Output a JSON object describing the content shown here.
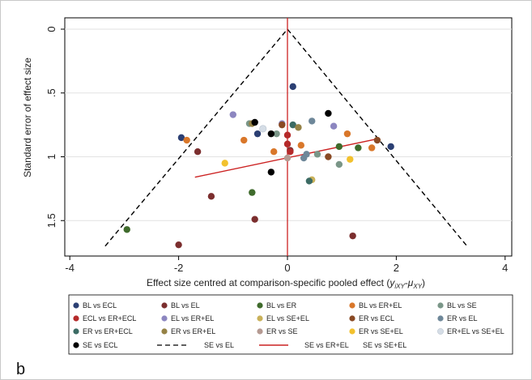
{
  "panel_label": "b",
  "chart_data": {
    "type": "scatter",
    "title": "",
    "xlabel_main": "Effect size centred at comparison-specific pooled effect (",
    "xlabel_formula": "y",
    "xlabel_sub1": "iXY",
    "xlabel_dash": "-",
    "xlabel_mu": "μ",
    "xlabel_sub2": "XY",
    "xlabel_close": ")",
    "ylabel": "Standard error of effect size",
    "xlim": [
      -4,
      4
    ],
    "ylim": [
      1.75,
      0
    ],
    "x_ticks": [
      -4,
      -2,
      0,
      2,
      4
    ],
    "x_tick_labels": [
      "-4",
      "-2",
      "0",
      "2",
      "4"
    ],
    "y_ticks": [
      0,
      0.5,
      1,
      1.5
    ],
    "y_tick_labels": [
      "0",
      ".5",
      "1",
      "1.5"
    ],
    "grid": true,
    "pseudo_ci": {
      "apex": [
        0,
        0
      ],
      "left_end": [
        -3.35,
        1.7
      ],
      "right_end": [
        3.3,
        1.7
      ],
      "style": "dashed",
      "color": "#000000"
    },
    "vertical_line": {
      "x": 0,
      "color": "#cc2222"
    },
    "regression_line": {
      "x": [
        -1.7,
        1.65
      ],
      "y": [
        1.16,
        0.86
      ],
      "color": "#cc2222"
    },
    "series": [
      {
        "name": "BL vs ECL",
        "color": "#2b3f73",
        "points": [
          [
            -1.95,
            0.85
          ],
          [
            0.1,
            0.45
          ],
          [
            -0.55,
            0.82
          ],
          [
            1.9,
            0.92
          ]
        ]
      },
      {
        "name": "BL vs EL",
        "color": "#7b2e2e",
        "points": [
          [
            -2.0,
            1.69
          ],
          [
            -0.6,
            1.49
          ],
          [
            -1.4,
            1.31
          ],
          [
            1.2,
            1.62
          ],
          [
            -1.65,
            0.96
          ],
          [
            0.05,
            0.95
          ]
        ]
      },
      {
        "name": "BL vs ER",
        "color": "#3f6b2c",
        "points": [
          [
            -2.95,
            1.57
          ],
          [
            -0.65,
            1.28
          ],
          [
            0.95,
            0.92
          ],
          [
            1.3,
            0.93
          ]
        ]
      },
      {
        "name": "BL vs ER+EL",
        "color": "#d9772a",
        "points": [
          [
            -1.85,
            0.87
          ],
          [
            -0.8,
            0.87
          ],
          [
            -0.25,
            0.96
          ],
          [
            0.25,
            0.91
          ],
          [
            1.55,
            0.93
          ],
          [
            1.1,
            0.82
          ]
        ]
      },
      {
        "name": "BL vs SE",
        "color": "#7a9688",
        "points": [
          [
            -0.7,
            0.74
          ],
          [
            -0.2,
            0.82
          ],
          [
            0.55,
            0.98
          ],
          [
            0.95,
            1.06
          ]
        ]
      },
      {
        "name": "ECL vs ER+ECL",
        "color": "#b52a2a",
        "points": [
          [
            0.0,
            0.83
          ],
          [
            0.0,
            0.9
          ],
          [
            0.05,
            0.96
          ]
        ]
      },
      {
        "name": "EL vs ER+EL",
        "color": "#8c86c0",
        "points": [
          [
            -1.0,
            0.67
          ],
          [
            0.85,
            0.76
          ],
          [
            -0.1,
            0.74
          ]
        ]
      },
      {
        "name": "EL vs SE+EL",
        "color": "#c9b15a",
        "points": [
          [
            0.45,
            1.18
          ]
        ]
      },
      {
        "name": "ER vs ECL",
        "color": "#8a4a24",
        "points": [
          [
            -0.1,
            0.75
          ],
          [
            1.65,
            0.87
          ],
          [
            0.75,
            1.0
          ]
        ]
      },
      {
        "name": "ER vs EL",
        "color": "#6e8799",
        "points": [
          [
            0.45,
            0.72
          ],
          [
            0.3,
            1.01
          ],
          [
            0.35,
            0.98
          ]
        ]
      },
      {
        "name": "ER vs ER+ECL",
        "color": "#3c6b64",
        "points": [
          [
            0.1,
            0.75
          ],
          [
            0.4,
            1.19
          ]
        ]
      },
      {
        "name": "ER vs ER+EL",
        "color": "#958246",
        "points": [
          [
            -0.65,
            0.74
          ],
          [
            0.2,
            0.77
          ]
        ]
      },
      {
        "name": "ER vs SE",
        "color": "#b59a92",
        "points": [
          [
            0.0,
            1.01
          ]
        ]
      },
      {
        "name": "ER vs SE+EL",
        "color": "#f2c12e",
        "points": [
          [
            -1.15,
            1.05
          ],
          [
            1.15,
            1.02
          ]
        ]
      },
      {
        "name": "ER+EL vs SE+EL",
        "color": "#d5dde6",
        "points": [
          [
            -0.45,
            0.78
          ]
        ]
      },
      {
        "name": "SE vs ECL",
        "color": "#000000",
        "points": [
          [
            -0.3,
            1.12
          ],
          [
            -0.6,
            0.73
          ],
          [
            0.75,
            0.66
          ],
          [
            -0.3,
            0.82
          ]
        ]
      }
    ],
    "legend": {
      "placement": "bottom",
      "items": [
        {
          "label": "BL vs ECL",
          "kind": "dot",
          "color": "#2b3f73"
        },
        {
          "label": "BL vs EL",
          "kind": "dot",
          "color": "#7b2e2e"
        },
        {
          "label": "BL vs ER",
          "kind": "dot",
          "color": "#3f6b2c"
        },
        {
          "label": "BL vs ER+EL",
          "kind": "dot",
          "color": "#d9772a"
        },
        {
          "label": "BL vs SE",
          "kind": "dot",
          "color": "#7a9688"
        },
        {
          "label": "ECL vs ER+ECL",
          "kind": "dot",
          "color": "#b52a2a"
        },
        {
          "label": "EL vs ER+EL",
          "kind": "dot",
          "color": "#8c86c0"
        },
        {
          "label": "EL vs SE+EL",
          "kind": "dot",
          "color": "#c9b15a"
        },
        {
          "label": "ER vs ECL",
          "kind": "dot",
          "color": "#8a4a24"
        },
        {
          "label": "ER vs EL",
          "kind": "dot",
          "color": "#6e8799"
        },
        {
          "label": "ER vs ER+ECL",
          "kind": "dot",
          "color": "#3c6b64"
        },
        {
          "label": "ER vs ER+EL",
          "kind": "dot",
          "color": "#958246"
        },
        {
          "label": "ER vs SE",
          "kind": "dot",
          "color": "#b59a92"
        },
        {
          "label": "ER vs SE+EL",
          "kind": "dot",
          "color": "#f2c12e"
        },
        {
          "label": "ER+EL vs SE+EL",
          "kind": "dot",
          "color": "#d5dde6"
        },
        {
          "label": "SE vs ECL",
          "kind": "dot",
          "color": "#000000"
        },
        {
          "label": "SE vs EL",
          "kind": "dash",
          "color": "#000000"
        },
        {
          "label": "SE vs ER+EL",
          "kind": "redline",
          "color": "#cc2222"
        },
        {
          "label": "SE vs SE+EL",
          "kind": "none",
          "color": "#ffffff"
        }
      ]
    }
  }
}
